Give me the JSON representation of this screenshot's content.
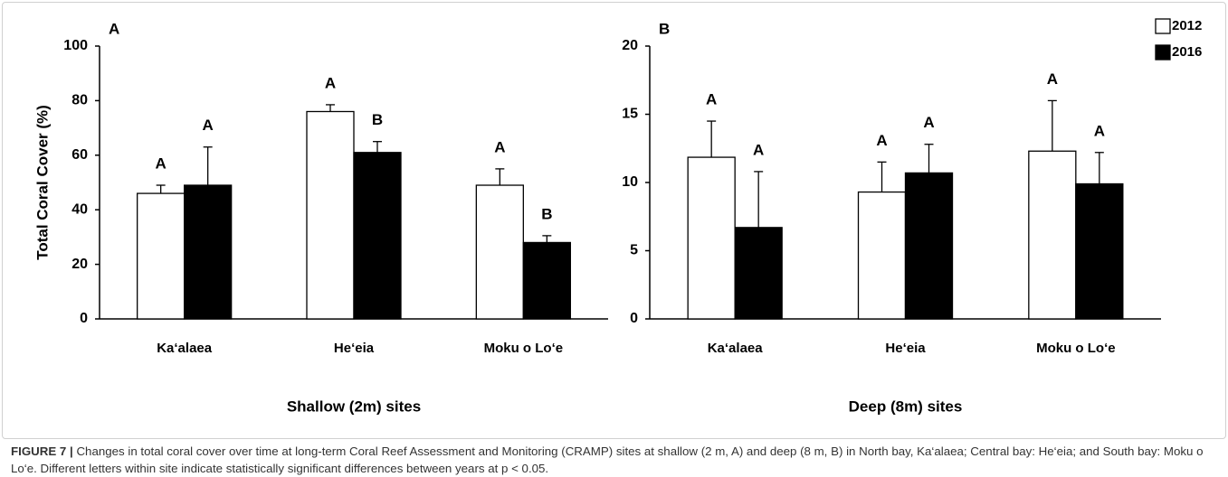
{
  "chart_data": [
    {
      "type": "bar",
      "title": "A",
      "ylabel": "Total Coral Cover (%)",
      "xlabel": "Shallow (2m) sites",
      "categories": [
        "Ka‘alaea",
        "He‘eia",
        "Moku o Lo‘e"
      ],
      "series": [
        {
          "name": "2012",
          "color": "#ffffff",
          "values": [
            46,
            76,
            49
          ],
          "errors": [
            3,
            2.5,
            6
          ],
          "letters": [
            "A",
            "A",
            "A"
          ]
        },
        {
          "name": "2016",
          "color": "#000000",
          "values": [
            49,
            61,
            28
          ],
          "errors": [
            14,
            4,
            2.5
          ],
          "letters": [
            "A",
            "B",
            "B"
          ]
        }
      ],
      "ylim": [
        0,
        100
      ],
      "yticks": [
        0,
        20,
        40,
        60,
        80,
        100
      ],
      "legend": false
    },
    {
      "type": "bar",
      "title": "B",
      "xlabel": "Deep (8m) sites",
      "categories": [
        "Ka‘alaea",
        "He‘eia",
        "Moku o Lo‘e"
      ],
      "series": [
        {
          "name": "2012",
          "color": "#ffffff",
          "values": [
            11.85,
            9.3,
            12.3
          ],
          "errors": [
            2.65,
            2.2,
            3.7
          ],
          "letters": [
            "A",
            "A",
            "A"
          ]
        },
        {
          "name": "2016",
          "color": "#000000",
          "values": [
            6.7,
            10.7,
            9.9
          ],
          "errors": [
            4.1,
            2.1,
            2.3
          ],
          "letters": [
            "A",
            "A",
            "A"
          ]
        }
      ],
      "ylim": [
        0,
        20
      ],
      "yticks": [
        0,
        5,
        10,
        15,
        20
      ],
      "legend": "upper right"
    }
  ],
  "caption": {
    "label": "FIGURE 7 |",
    "text": "Changes in total coral cover over time at long-term Coral Reef Assessment and Monitoring (CRAMP) sites at shallow (2 m, A) and deep (8 m, B) in North bay, Ka‘alaea; Central bay: He‘eia; and South bay: Moku o Lo‘e. Different letters within site indicate statistically significant differences between years at p < 0.05."
  }
}
